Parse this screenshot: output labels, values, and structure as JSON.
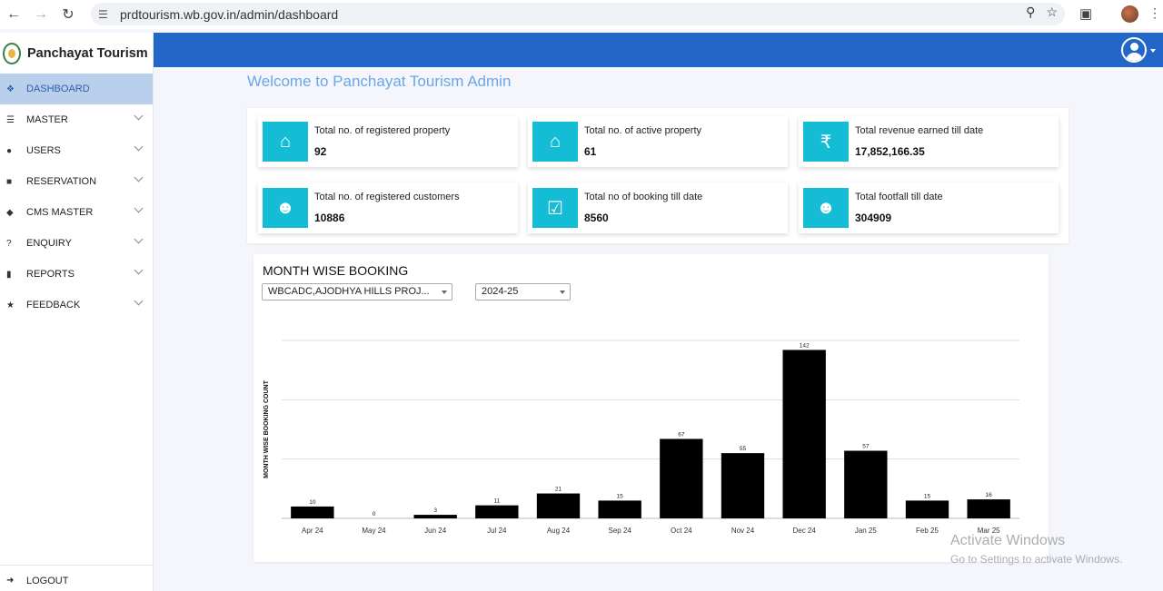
{
  "browser": {
    "url": "prdtourism.wb.gov.in/admin/dashboard"
  },
  "sidebar": {
    "brand": "Panchayat Tourism",
    "items": [
      {
        "label": "DASHBOARD",
        "icon": "home-icon",
        "active": true
      },
      {
        "label": "MASTER",
        "icon": "bars-icon"
      },
      {
        "label": "USERS",
        "icon": "users-icon"
      },
      {
        "label": "RESERVATION",
        "icon": "lock-icon"
      },
      {
        "label": "CMS MASTER",
        "icon": "cube-icon"
      },
      {
        "label": "ENQUIRY",
        "icon": "question-icon"
      },
      {
        "label": "REPORTS",
        "icon": "file-icon"
      },
      {
        "label": "FEEDBACK",
        "icon": "star-icon"
      }
    ],
    "logout": "LOGOUT"
  },
  "header": {
    "welcome": "Welcome to Panchayat Tourism Admin",
    "color": "#2266c8"
  },
  "stats": [
    {
      "label": "Total no. of registered property",
      "value": "92",
      "icon": "home-icon"
    },
    {
      "label": "Total no. of active property",
      "value": "61",
      "icon": "home-icon"
    },
    {
      "label": "Total revenue earned till date",
      "value": "17,852,166.35",
      "icon": "rupee-icon"
    },
    {
      "label": "Total no. of registered customers",
      "value": "10886",
      "icon": "users-icon"
    },
    {
      "label": "Total no of booking till date",
      "value": "8560",
      "icon": "calendar-check-icon"
    },
    {
      "label": "Total footfall till date",
      "value": "304909",
      "icon": "users-icon"
    }
  ],
  "chart_section": {
    "title": "MONTH WISE BOOKING",
    "property_select": "WBCADC,AJODHYA HILLS PROJ...",
    "year_select": "2024-25"
  },
  "chart_data": {
    "type": "bar",
    "ylabel": "MONTH WISE BOOKING COUNT",
    "categories": [
      "Apr 24",
      "May 24",
      "Jun 24",
      "Jul 24",
      "Aug 24",
      "Sep 24",
      "Oct 24",
      "Nov 24",
      "Dec 24",
      "Jan 25",
      "Feb 25",
      "Mar 25"
    ],
    "values": [
      10,
      0,
      3,
      11,
      21,
      15,
      67,
      55,
      142,
      57,
      15,
      16
    ],
    "ylim": [
      0,
      150
    ],
    "grid": true,
    "bar_color": "#000000"
  },
  "watermark": {
    "line1": "Activate Windows",
    "line2": "Go to Settings to activate Windows."
  }
}
